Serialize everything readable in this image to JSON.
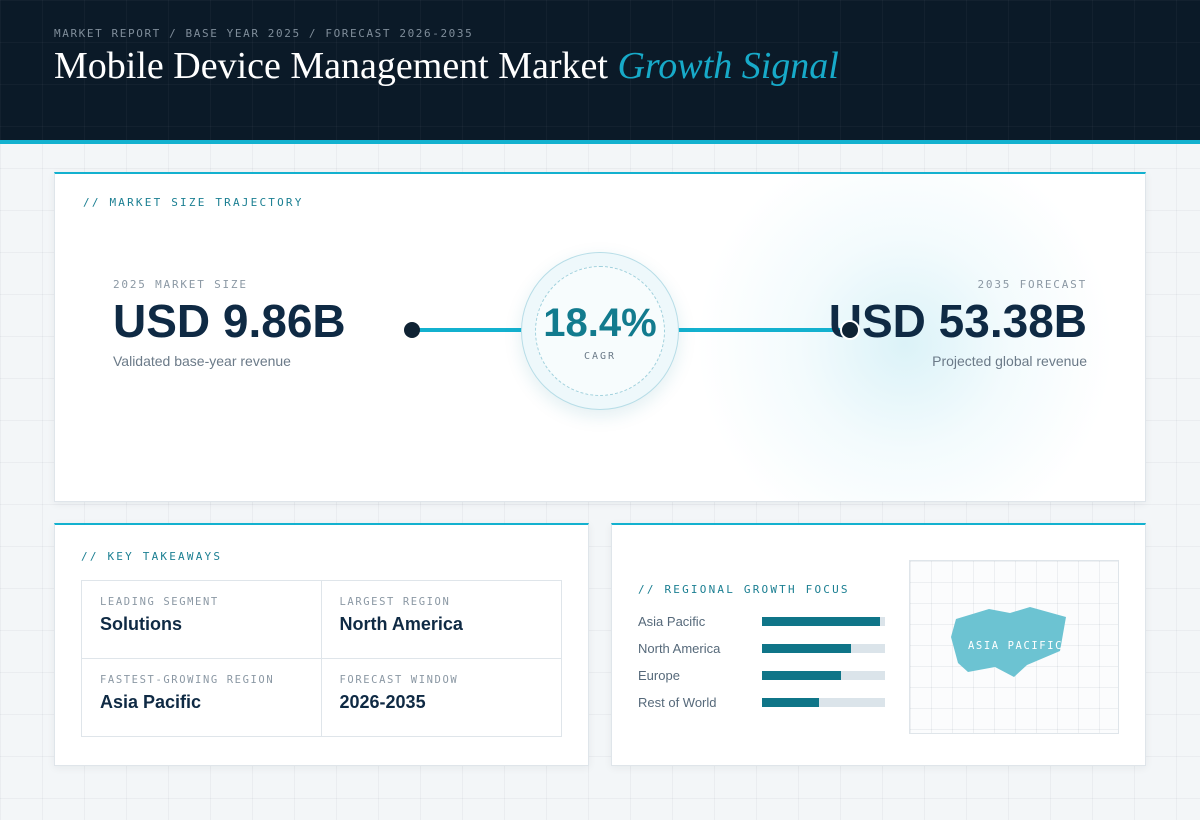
{
  "header": {
    "breadcrumb": "MARKET REPORT / BASE YEAR 2025 / FORECAST 2026-2035",
    "title_main": "Mobile Device Management Market",
    "title_accent": "Growth Signal"
  },
  "trajectory": {
    "section_label": "// MARKET SIZE TRAJECTORY",
    "base": {
      "caption": "2025 MARKET SIZE",
      "value": "USD 9.86B",
      "note": "Validated base-year revenue"
    },
    "forecast": {
      "caption": "2035 FORECAST",
      "value": "USD 53.38B",
      "note": "Projected global revenue"
    },
    "cagr": {
      "value": "18.4%",
      "label": "CAGR"
    }
  },
  "takeaways": {
    "section_label": "// KEY TAKEAWAYS",
    "items": [
      {
        "label": "LEADING SEGMENT",
        "value": "Solutions"
      },
      {
        "label": "LARGEST REGION",
        "value": "North America"
      },
      {
        "label": "FASTEST-GROWING REGION",
        "value": "Asia Pacific"
      },
      {
        "label": "FORECAST WINDOW",
        "value": "2026-2035"
      }
    ]
  },
  "regional": {
    "section_label": "// REGIONAL GROWTH FOCUS",
    "bars": [
      {
        "name": "Asia Pacific",
        "level": 0.96
      },
      {
        "name": "North America",
        "level": 0.72
      },
      {
        "name": "Europe",
        "level": 0.64
      },
      {
        "name": "Rest of World",
        "level": 0.46
      }
    ],
    "map_label": "ASIA PACIFIC",
    "map_highlight_color": "#6cc3d2"
  },
  "colors": {
    "accent": "#13b1cf",
    "header_bg": "#0b1a28",
    "bar_fill": "#0f7588",
    "value_text": "#0f2a44"
  }
}
